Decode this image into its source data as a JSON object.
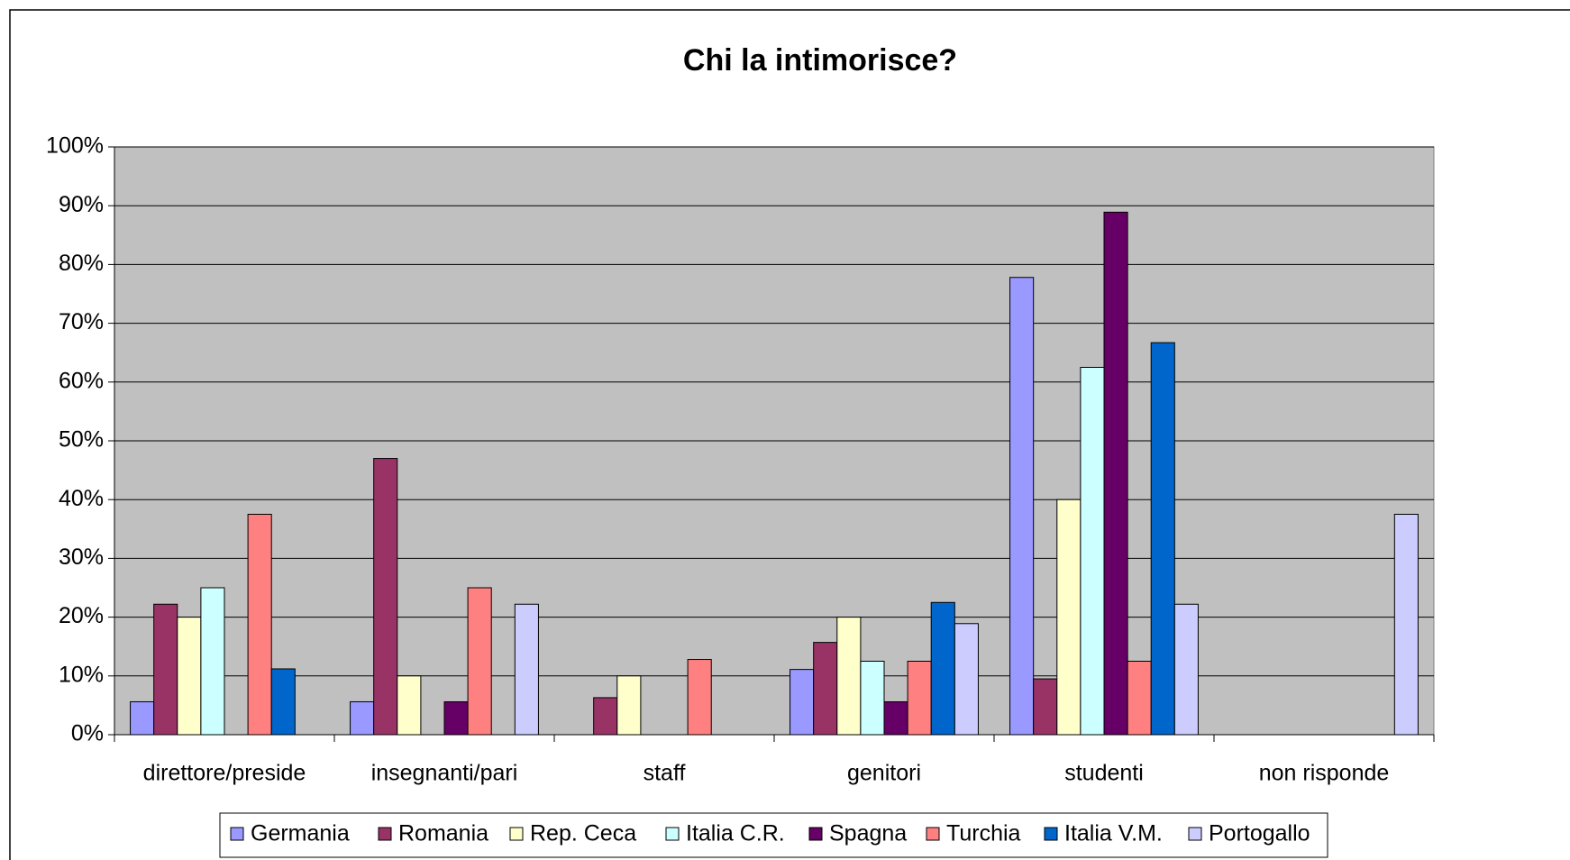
{
  "chart_data": {
    "type": "bar",
    "title": "Chi la intimorisce?",
    "categories": [
      "direttore/preside",
      "insegnanti/pari",
      "staff",
      "genitori",
      "studenti",
      "non risponde"
    ],
    "series": [
      {
        "name": "Germania",
        "color": "#9999ff",
        "values": [
          5.6,
          5.6,
          0,
          11.1,
          77.8,
          0
        ]
      },
      {
        "name": "Romania",
        "color": "#993366",
        "values": [
          22.2,
          47,
          6.3,
          15.7,
          9.5,
          0
        ]
      },
      {
        "name": "Rep. Ceca",
        "color": "#ffffcc",
        "values": [
          20,
          10,
          10,
          20,
          40,
          0
        ]
      },
      {
        "name": "Italia C.R.",
        "color": "#ccffff",
        "values": [
          25,
          0,
          0,
          12.5,
          62.5,
          0
        ]
      },
      {
        "name": "Spagna",
        "color": "#660066",
        "values": [
          0,
          5.6,
          0,
          5.6,
          88.9,
          0
        ]
      },
      {
        "name": "Turchia",
        "color": "#ff8080",
        "values": [
          37.5,
          25,
          12.8,
          12.5,
          12.5,
          0
        ]
      },
      {
        "name": "Italia V.M.",
        "color": "#0066cc",
        "values": [
          11.2,
          0,
          0,
          22.5,
          66.7,
          0
        ]
      },
      {
        "name": "Portogallo",
        "color": "#ccccff",
        "values": [
          0,
          22.2,
          0,
          18.9,
          22.2,
          37.5
        ]
      }
    ],
    "ylim": [
      0,
      100
    ],
    "yticks": [
      {
        "value": 0,
        "label": "0%"
      },
      {
        "value": 10,
        "label": "10%"
      },
      {
        "value": 20,
        "label": "20%"
      },
      {
        "value": 30,
        "label": "30%"
      },
      {
        "value": 40,
        "label": "40%"
      },
      {
        "value": 50,
        "label": "50%"
      },
      {
        "value": 60,
        "label": "60%"
      },
      {
        "value": 70,
        "label": "70%"
      },
      {
        "value": 80,
        "label": "80%"
      },
      {
        "value": 90,
        "label": "90%"
      },
      {
        "value": 100,
        "label": "100%"
      }
    ],
    "grid": true,
    "legend": "bottom"
  }
}
